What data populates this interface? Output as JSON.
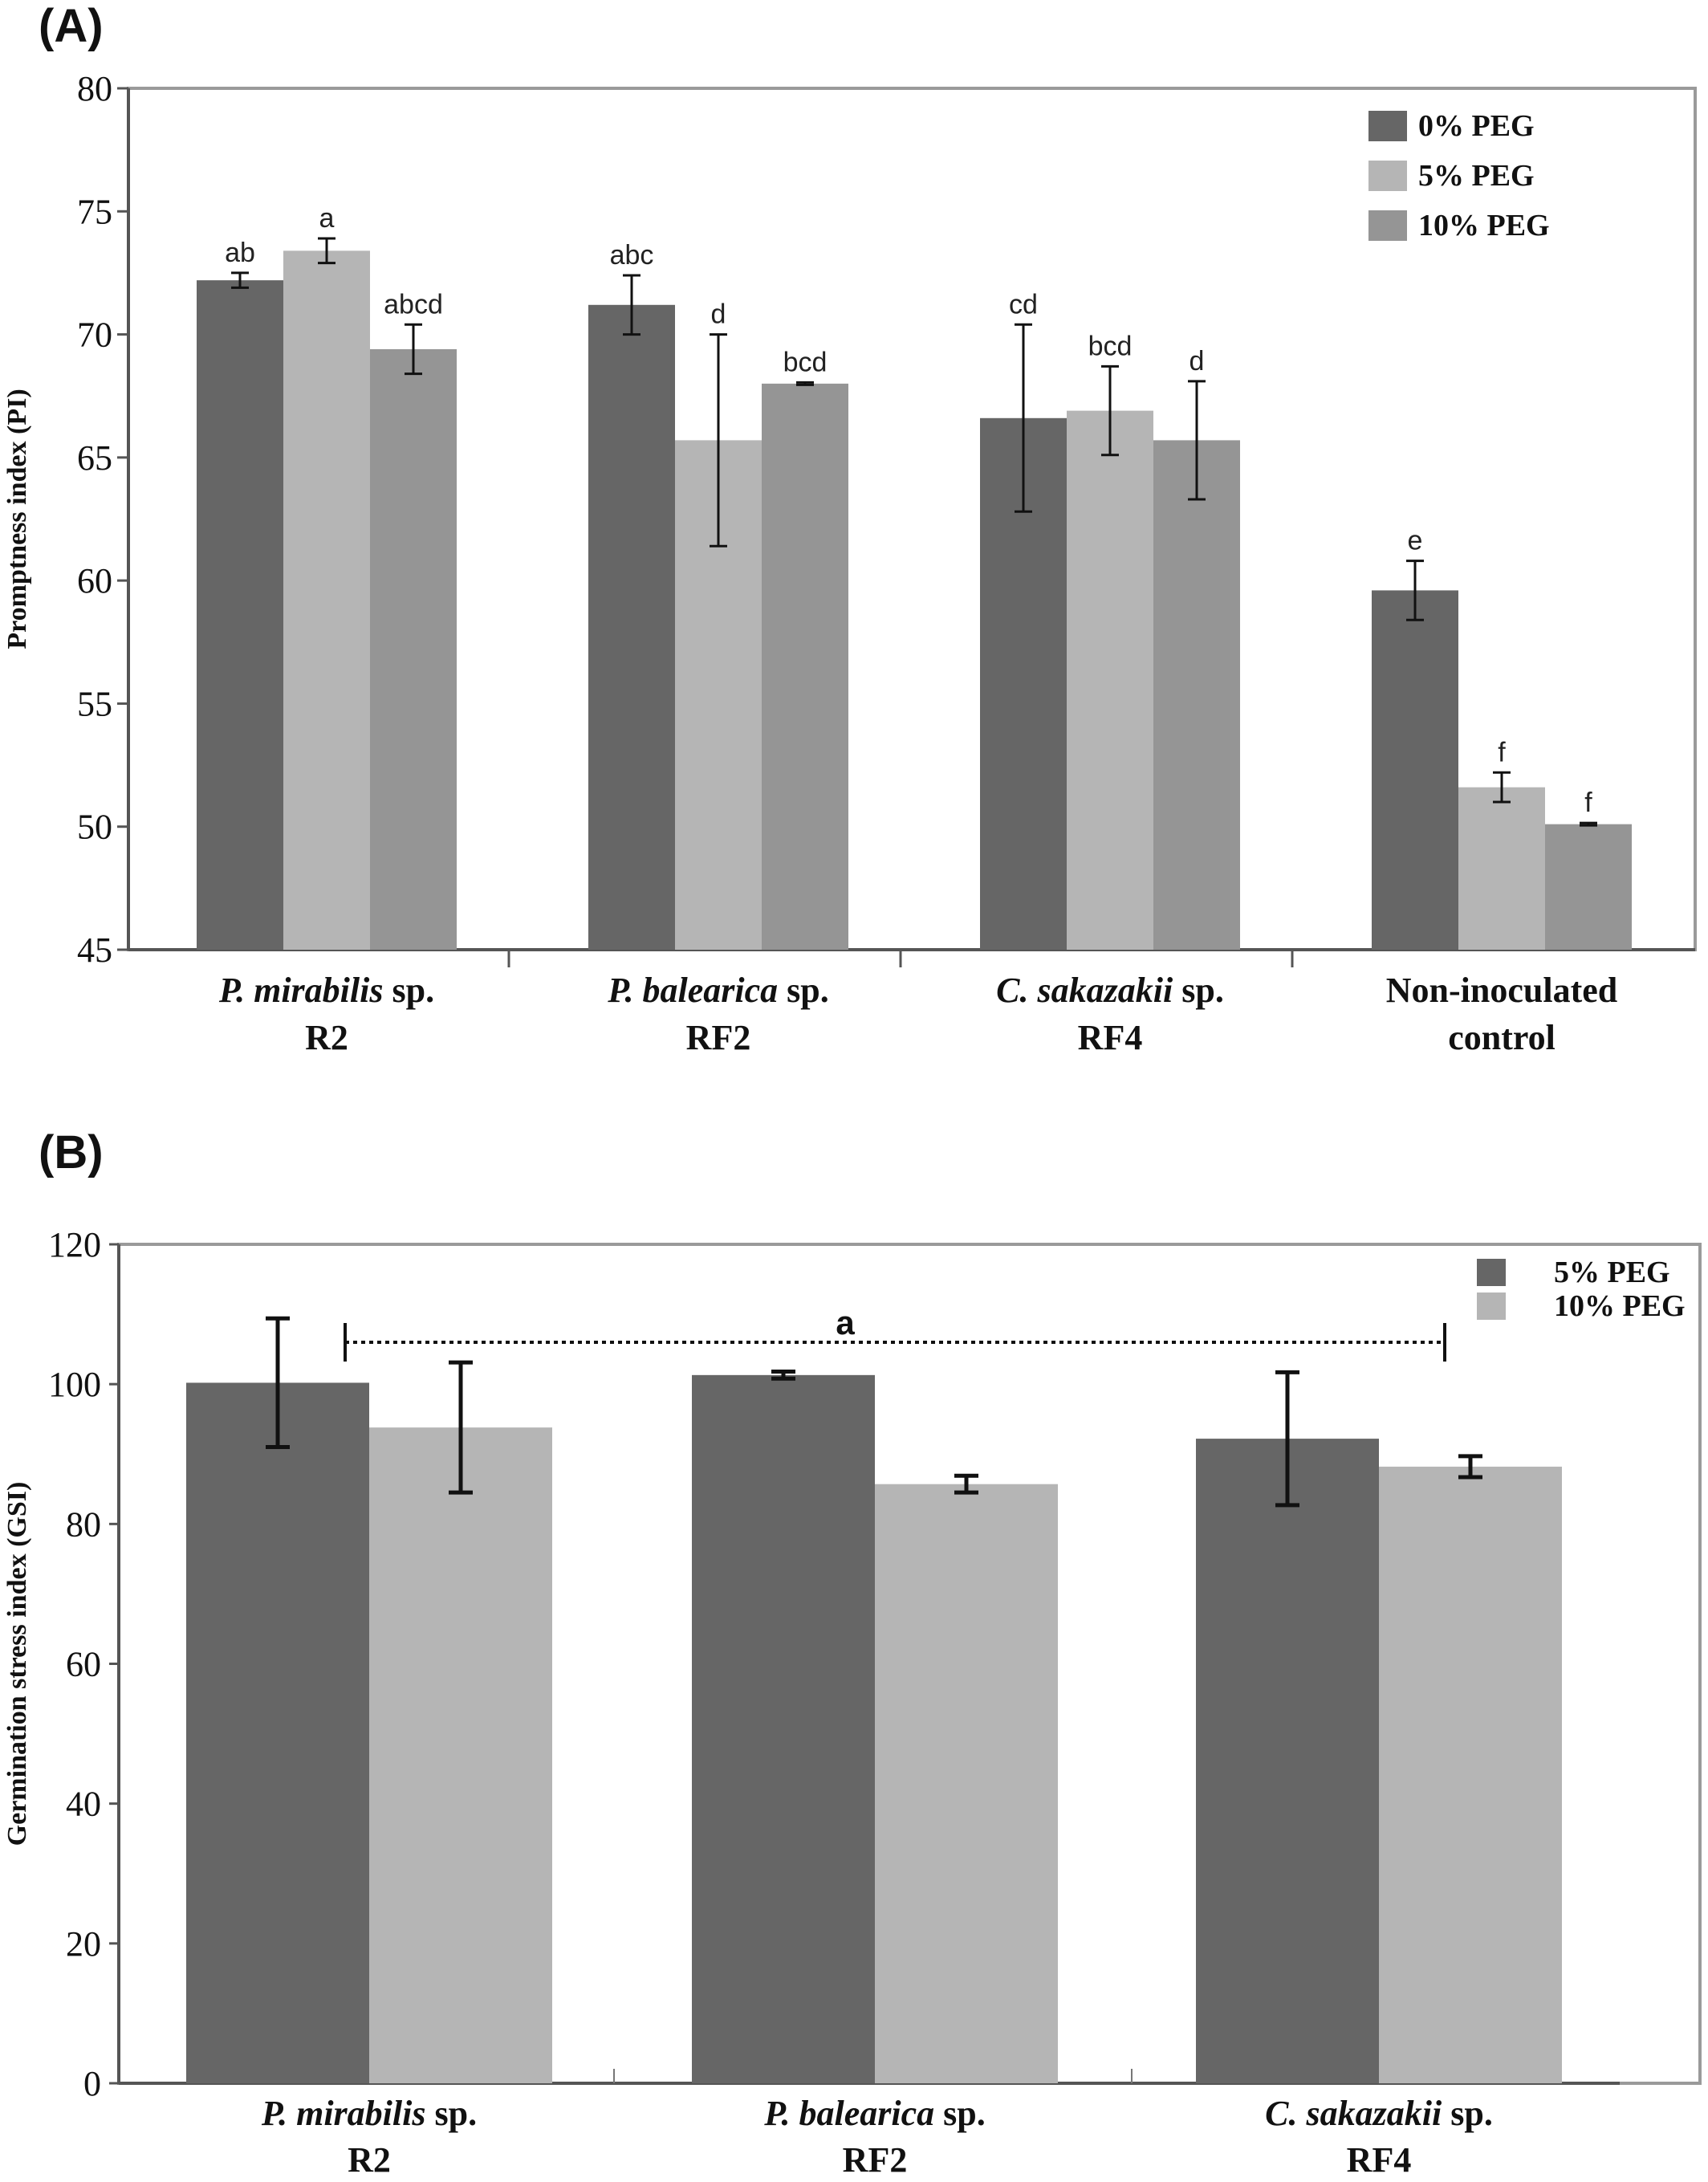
{
  "chart_data": [
    {
      "type": "bar",
      "panel_label": "(A)",
      "ylabel": "Promptness index (PI)",
      "ylim": [
        45,
        80
      ],
      "yticks": [
        "45",
        "50",
        "55",
        "60",
        "65",
        "70",
        "75",
        "80"
      ],
      "categories": [
        {
          "italic": "P. mirabilis",
          "rest": " sp.",
          "line2": "R2"
        },
        {
          "italic": "P. balearica",
          "rest": " sp.",
          "line2": "RF2"
        },
        {
          "italic": "C. sakazakii",
          "rest": " sp.",
          "line2": "RF4"
        },
        {
          "italic": "",
          "rest": "Non-inoculated",
          "line2": "control"
        }
      ],
      "legend_position": "top-right",
      "series": [
        {
          "name": "0% PEG",
          "color": "#666666",
          "values": [
            72.2,
            71.2,
            66.6,
            59.6
          ],
          "errors": [
            0.3,
            1.2,
            3.8,
            1.2
          ],
          "labels": [
            "ab",
            "abc",
            "cd",
            "e"
          ]
        },
        {
          "name": "5% PEG",
          "color": "#b5b5b5",
          "values": [
            73.4,
            65.7,
            66.9,
            51.6
          ],
          "errors": [
            0.5,
            4.3,
            1.8,
            0.6
          ],
          "labels": [
            "a",
            "d",
            "bcd",
            "f"
          ]
        },
        {
          "name": "10% PEG",
          "color": "#959595",
          "values": [
            69.4,
            68.0,
            65.7,
            50.1
          ],
          "errors": [
            1.0,
            0.05,
            2.4,
            0.05
          ],
          "labels": [
            "abcd",
            "bcd",
            "d",
            "f"
          ]
        }
      ]
    },
    {
      "type": "bar",
      "panel_label": "(B)",
      "ylabel": "Germination stress  index (GSI)",
      "ylim": [
        0,
        120
      ],
      "yticks": [
        "0",
        "20",
        "40",
        "60",
        "80",
        "100",
        "120"
      ],
      "categories": [
        {
          "italic": "P. mirabilis",
          "rest": " sp.",
          "line2": "R2"
        },
        {
          "italic": "P. balearica",
          "rest": " sp.",
          "line2": "RF2"
        },
        {
          "italic": "C. sakazakii",
          "rest": " sp.",
          "line2": "RF4"
        }
      ],
      "legend_position": "top-right",
      "annotation": "a",
      "series": [
        {
          "name": "5% PEG",
          "color": "#666666",
          "values": [
            100.2,
            101.3,
            92.2
          ],
          "errors": [
            9.2,
            0.5,
            9.5
          ]
        },
        {
          "name": "10% PEG",
          "color": "#b5b5b5",
          "values": [
            93.8,
            85.7,
            88.2
          ],
          "errors": [
            9.3,
            1.2,
            1.5
          ]
        }
      ]
    }
  ]
}
